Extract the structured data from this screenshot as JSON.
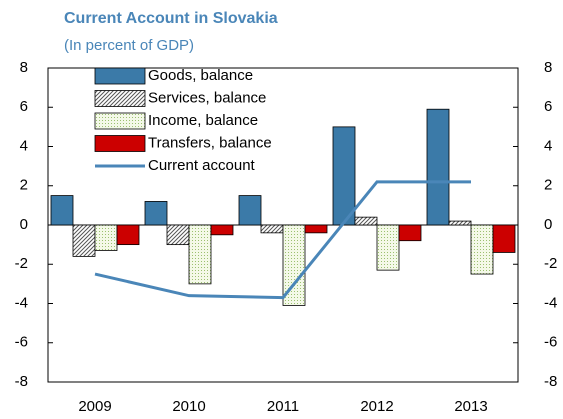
{
  "chart_data": {
    "type": "bar-line",
    "title": "Current Account in Slovakia",
    "subtitle": "(In percent of GDP)",
    "categories": [
      "2009",
      "2010",
      "2011",
      "2012",
      "2013"
    ],
    "series": [
      {
        "name": "Goods, balance",
        "type": "bar",
        "color": "#3b7aa8",
        "values": [
          1.5,
          1.2,
          1.5,
          5.0,
          5.9
        ]
      },
      {
        "name": "Services, balance",
        "type": "bar",
        "color": "#555555",
        "pattern": "hatch",
        "values": [
          -1.6,
          -1.0,
          -0.4,
          0.4,
          0.2
        ]
      },
      {
        "name": "Income, balance",
        "type": "bar",
        "color": "#c8e0a0",
        "pattern": "dots",
        "values": [
          -1.3,
          -3.0,
          -4.1,
          -2.3,
          -2.5
        ]
      },
      {
        "name": "Transfers, balance",
        "type": "bar",
        "color": "#cc0000",
        "values": [
          -1.0,
          -0.5,
          -0.4,
          -0.8,
          -1.4
        ]
      },
      {
        "name": "Current account",
        "type": "line",
        "color": "#4a86b8",
        "values": [
          -2.5,
          -3.6,
          -3.7,
          2.2,
          2.2
        ]
      }
    ],
    "ylim": [
      -8,
      8
    ],
    "yticks": [
      -8,
      -6,
      -4,
      -2,
      0,
      2,
      4,
      6,
      8
    ],
    "y2lim": [
      -8,
      8
    ],
    "y2ticks": [
      -8,
      -6,
      -4,
      -2,
      0,
      2,
      4,
      6,
      8
    ]
  }
}
